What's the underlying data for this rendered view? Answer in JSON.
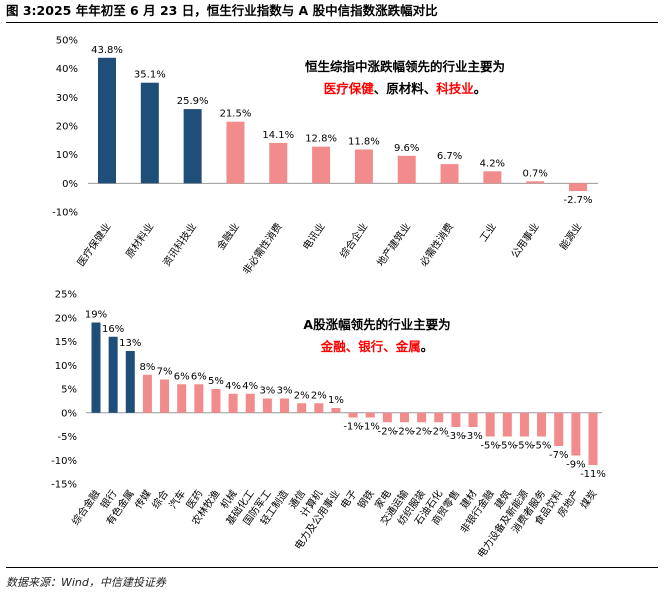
{
  "figure": {
    "title": "图 3:2025 年年初至 6 月 23 日，恒生行业指数与 A 股中信指数涨跌幅对比",
    "source": "数据来源：Wind，中信建投证券"
  },
  "colors": {
    "highlight": "#1f4e79",
    "normal": "#f28b8b",
    "annotation_highlight": "#ff0000"
  },
  "chart_data": [
    {
      "type": "bar",
      "categories": [
        "医疗保健业",
        "原材料业",
        "资讯科技业",
        "金融业",
        "非必需性消费",
        "电讯业",
        "综合企业",
        "地产建筑业",
        "必需性消费",
        "工业",
        "公用事业",
        "能源业"
      ],
      "values": [
        43.8,
        35.1,
        25.9,
        21.5,
        14.1,
        12.8,
        11.8,
        9.6,
        6.7,
        4.2,
        0.7,
        -2.7
      ],
      "value_labels": [
        "43.8%",
        "35.1%",
        "25.9%",
        "21.5%",
        "14.1%",
        "12.8%",
        "11.8%",
        "9.6%",
        "6.7%",
        "4.2%",
        "0.7%",
        "-2.7%"
      ],
      "highlighted": [
        true,
        true,
        true,
        false,
        false,
        false,
        false,
        false,
        false,
        false,
        false,
        false
      ],
      "yticks": [
        -10,
        0,
        10,
        20,
        30,
        40,
        50
      ],
      "ytick_labels": [
        "-10%",
        "0%",
        "10%",
        "20%",
        "30%",
        "40%",
        "50%"
      ],
      "ylim": [
        -10,
        50
      ],
      "annotation": {
        "line1": "恒生综指中涨跌幅领先的行业主要为",
        "parts": [
          {
            "text": "医疗保健",
            "highlight": true
          },
          {
            "text": "、原材料、",
            "highlight": false
          },
          {
            "text": "科技业",
            "highlight": true
          },
          {
            "text": "。",
            "highlight": false
          }
        ]
      }
    },
    {
      "type": "bar",
      "categories": [
        "综合金融",
        "银行",
        "有色金属",
        "传媒",
        "综合",
        "汽车",
        "医药",
        "农林牧渔",
        "机械",
        "基础化工",
        "国防军工",
        "轻工制造",
        "通信",
        "计算机",
        "电力及公用事业",
        "电子",
        "钢铁",
        "家电",
        "交通运输",
        "纺织服装",
        "石油石化",
        "商贸零售",
        "建材",
        "非银行金融",
        "建筑",
        "电力设备及新能源",
        "消费者服务",
        "食品饮料",
        "房地产",
        "煤炭"
      ],
      "values": [
        19,
        16,
        13,
        8,
        7,
        6,
        6,
        5,
        4,
        4,
        3,
        3,
        2,
        2,
        1,
        -1,
        -1,
        -2,
        -2,
        -2,
        -2,
        -3,
        -3,
        -5,
        -5,
        -5,
        -5,
        -7,
        -9,
        -11
      ],
      "value_labels": [
        "19%",
        "16%",
        "13%",
        "8%",
        "7%",
        "6%",
        "6%",
        "5%",
        "4%",
        "4%",
        "3%",
        "3%",
        "2%",
        "2%",
        "1%",
        "-1%",
        "-1%",
        "-2%",
        "-2%",
        "-2%",
        "-2%",
        "-3%",
        "-3%",
        "-5%",
        "-5%",
        "-5%",
        "-5%",
        "-7%",
        "-9%",
        "-11%"
      ],
      "highlighted": [
        true,
        true,
        true,
        false,
        false,
        false,
        false,
        false,
        false,
        false,
        false,
        false,
        false,
        false,
        false,
        false,
        false,
        false,
        false,
        false,
        false,
        false,
        false,
        false,
        false,
        false,
        false,
        false,
        false,
        false
      ],
      "yticks": [
        -15,
        -10,
        -5,
        0,
        5,
        10,
        15,
        20,
        25
      ],
      "ytick_labels": [
        "-15%",
        "-10%",
        "-5%",
        "0%",
        "5%",
        "10%",
        "15%",
        "20%",
        "25%"
      ],
      "ylim": [
        -15,
        25
      ],
      "annotation": {
        "line1": "A股涨幅领先的行业主要为",
        "parts": [
          {
            "text": "金融、银行、金属",
            "highlight": true
          },
          {
            "text": "。",
            "highlight": false
          }
        ]
      }
    }
  ]
}
